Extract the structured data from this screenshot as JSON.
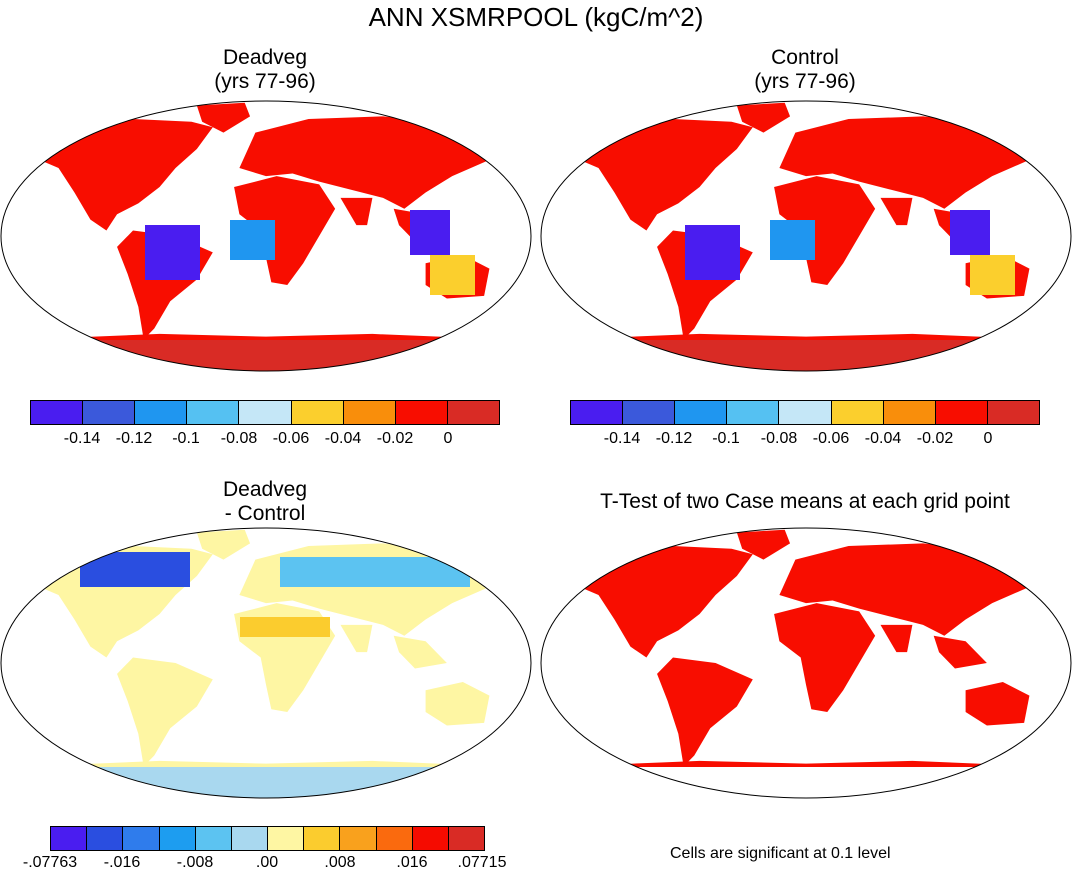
{
  "main_title": "ANN XSMRPOOL (kgC/m^2)",
  "panels": {
    "deadveg": {
      "title1": "Deadveg",
      "title2": "(yrs 77-96)"
    },
    "control": {
      "title1": "Control",
      "title2": "(yrs 77-96)"
    },
    "diff": {
      "title1": "Deadveg",
      "title2": "- Control"
    },
    "ttest": {
      "title1": "T-Test of two Case means at each grid point"
    }
  },
  "colorbar_top": {
    "colors": [
      "#4a1df0",
      "#3b59db",
      "#1f96f0",
      "#55c1f2",
      "#c5e7f7",
      "#fbcf2d",
      "#f98e0b",
      "#f80d00",
      "#d92b25"
    ],
    "ticks": [
      "-0.14",
      "-0.12",
      "-0.1",
      "-0.08",
      "-0.06",
      "-0.04",
      "-0.02",
      "0"
    ]
  },
  "colorbar_diff": {
    "colors": [
      "#4a1df0",
      "#2a4ee0",
      "#2f7cec",
      "#1d9df0",
      "#5cc3f1",
      "#a9d8ef",
      "#fef6a3",
      "#fbcc2e",
      "#f9a11d",
      "#fa6a0e",
      "#f50b00",
      "#d92b25"
    ],
    "ticks": [
      "-.07763",
      "-.016",
      "-.008",
      ".00",
      ".008",
      ".016",
      ".07715"
    ]
  },
  "significance_note": "Cells are significant at 0.1 level",
  "colors": {
    "significant": "#f80d00",
    "ocean": "#ffffff",
    "coast": "#000000"
  }
}
